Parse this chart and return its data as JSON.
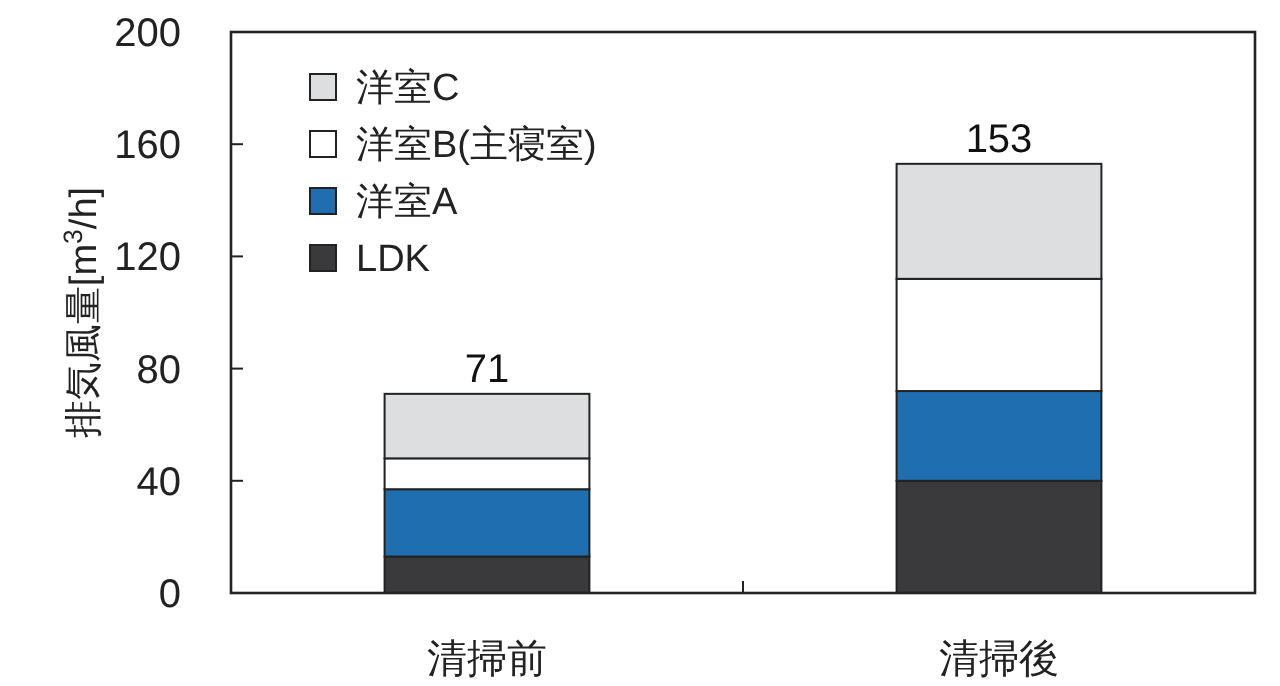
{
  "chart_data": {
    "type": "bar",
    "stacked": true,
    "categories": [
      "清掃前",
      "清掃後"
    ],
    "ylabel": "排気風量[m$^{3}$/h]",
    "ylim": [
      0,
      200
    ],
    "yticks": [
      0,
      40,
      80,
      120,
      160,
      200
    ],
    "legend": "top left",
    "grid": false,
    "totals": [
      "71",
      "153"
    ],
    "series": [
      {
        "name": "LDK",
        "color": "#3a3a3c",
        "values": [
          13,
          40
        ]
      },
      {
        "name": "洋室A",
        "color": "#1f6fb0",
        "values": [
          24,
          32
        ]
      },
      {
        "name": "洋室B(主寝室)",
        "color": "#ffffff",
        "values": [
          11,
          40
        ]
      },
      {
        "name": "洋室C",
        "color": "#dcdee0",
        "values": [
          23,
          41
        ]
      }
    ]
  }
}
